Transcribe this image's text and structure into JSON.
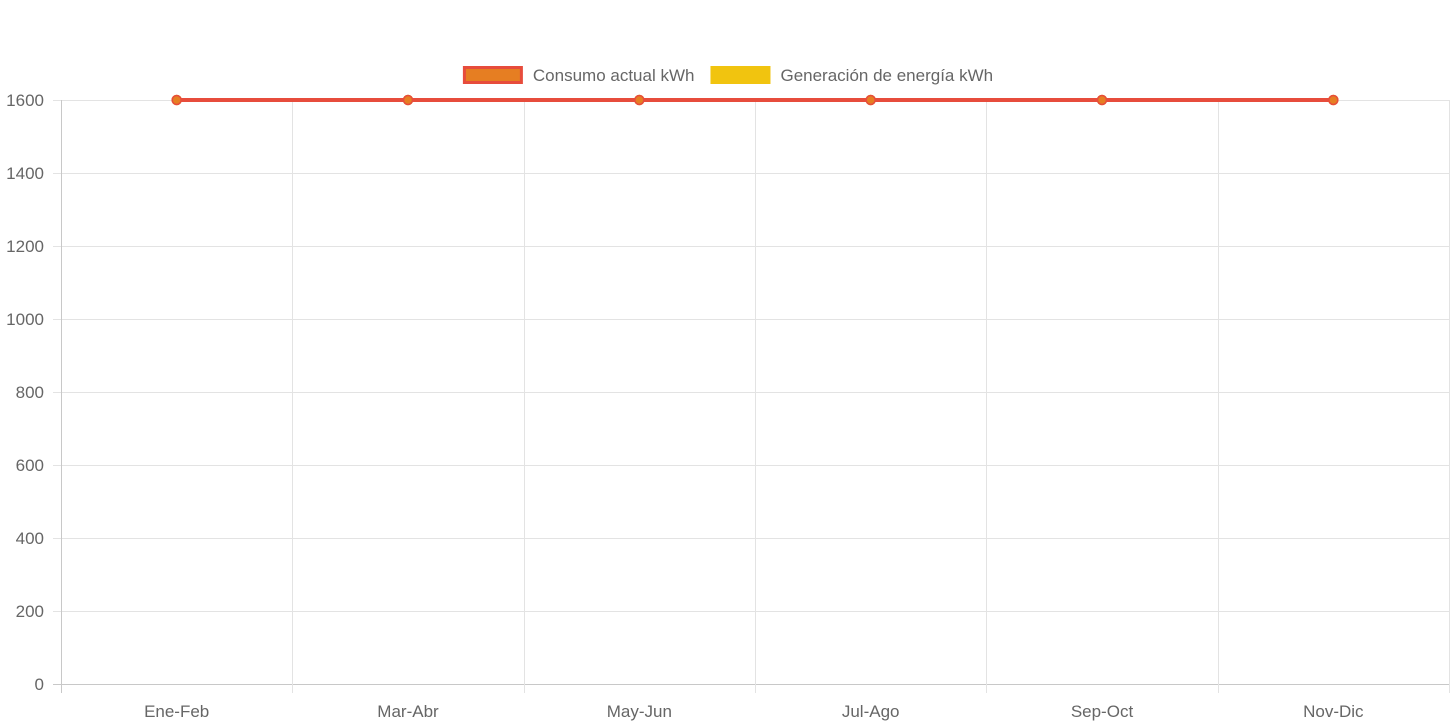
{
  "chart_data": {
    "type": "line",
    "categories": [
      "Ene-Feb",
      "Mar-Abr",
      "May-Jun",
      "Jul-Ago",
      "Sep-Oct",
      "Nov-Dic"
    ],
    "series": [
      {
        "name": "Consumo actual kWh",
        "values": [
          1600,
          1600,
          1600,
          1600,
          1600,
          1600
        ],
        "color": "#e74c3c",
        "fill_color": "#e67e22"
      },
      {
        "name": "Generación de energía kWh",
        "values": [
          1600,
          1600,
          1600,
          1600,
          1600,
          1600
        ],
        "color": "#f1c40f",
        "fill_color": "#f1c40f"
      }
    ],
    "yticks": [
      0,
      200,
      400,
      600,
      800,
      1000,
      1200,
      1400,
      1600
    ],
    "ylim": [
      0,
      1600
    ],
    "grid": true,
    "legend_position": "top-center",
    "title": "",
    "xlabel": "",
    "ylabel": ""
  }
}
